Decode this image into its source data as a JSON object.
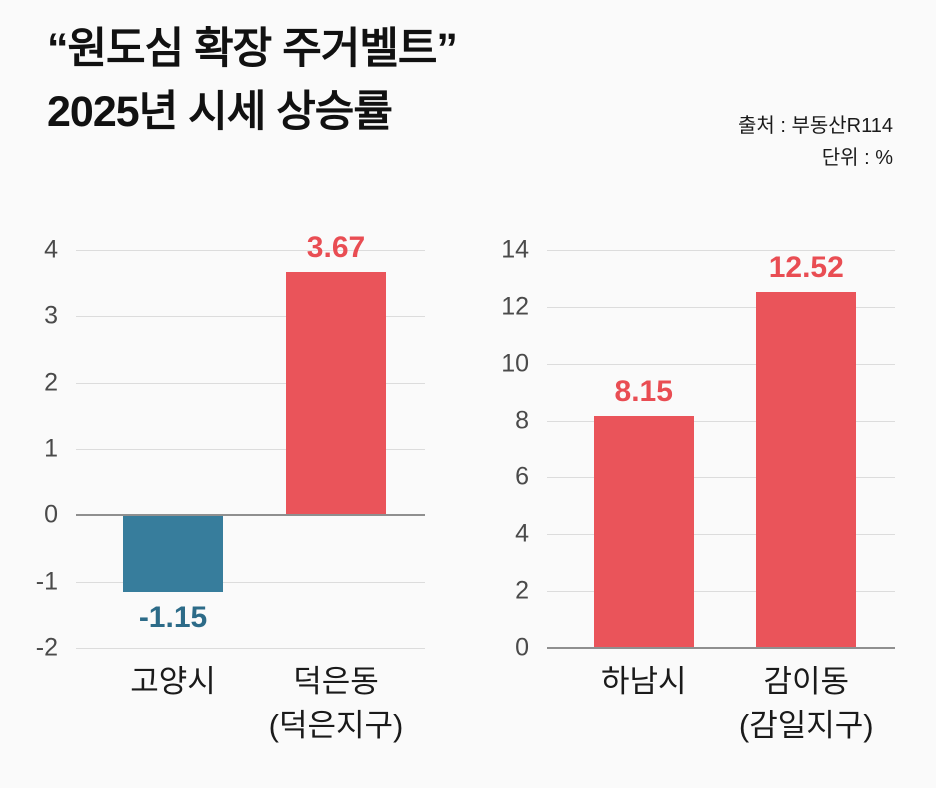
{
  "header": {
    "title_line1": "“원도심 확장 주거벨트”",
    "title_line2": "2025년 시세 상승률",
    "source": "출처 : 부동산R114",
    "unit": "단위 : %"
  },
  "colors": {
    "background": "#FAFAFA",
    "grid_line": "#DCDCDC",
    "zero_line": "#8F8F8F",
    "tick_text": "#4A4A4A",
    "category_text": "#1A1A1A",
    "red": "#EA545A",
    "red_label": "#E94D53",
    "teal": "#377D9C",
    "teal_label": "#2C6B88"
  },
  "chart_data": [
    {
      "type": "bar",
      "title": "",
      "xlabel": "",
      "ylabel": "",
      "unit": "%",
      "categories": [
        {
          "label": "고양시",
          "sub": ""
        },
        {
          "label": "덕은동",
          "sub": "(덕은지구)"
        }
      ],
      "values": [
        -1.15,
        3.67
      ],
      "value_labels": [
        "-1.15",
        "3.67"
      ],
      "bar_colors": [
        "#377D9C",
        "#EA545A"
      ],
      "value_label_colors": [
        "#2C6B88",
        "#E94D53"
      ],
      "ylim": [
        -2,
        4
      ],
      "yticks": [
        4,
        3,
        2,
        1,
        0,
        -1,
        -2
      ],
      "zero_line_at": 0,
      "grid": true,
      "legend": "none"
    },
    {
      "type": "bar",
      "title": "",
      "xlabel": "",
      "ylabel": "",
      "unit": "%",
      "categories": [
        {
          "label": "하남시",
          "sub": ""
        },
        {
          "label": "감이동",
          "sub": "(감일지구)"
        }
      ],
      "values": [
        8.15,
        12.52
      ],
      "value_labels": [
        "8.15",
        "12.52"
      ],
      "bar_colors": [
        "#EA545A",
        "#EA545A"
      ],
      "value_label_colors": [
        "#E94D53",
        "#E94D53"
      ],
      "ylim": [
        0,
        14
      ],
      "yticks": [
        14,
        12,
        10,
        8,
        6,
        4,
        2,
        0
      ],
      "zero_line_at": 0,
      "grid": true,
      "legend": "none"
    }
  ]
}
